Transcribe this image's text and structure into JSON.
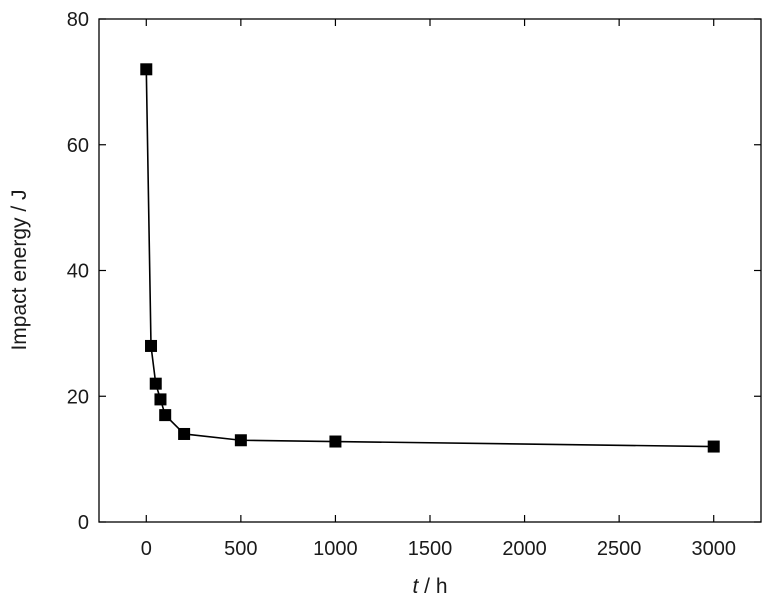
{
  "chart_data": {
    "type": "line",
    "title": "",
    "xlabel_var": "t",
    "xlabel_unit": " / h",
    "ylabel": "Impact energy / J",
    "xlim": [
      -250,
      3250
    ],
    "ylim": [
      0,
      80
    ],
    "xticks": [
      0,
      500,
      1000,
      1500,
      2000,
      2500,
      3000
    ],
    "yticks": [
      0,
      20,
      40,
      60,
      80
    ],
    "xtick_labels": [
      "0",
      "500",
      "1000",
      "1500",
      "2000",
      "2500",
      "3000"
    ],
    "ytick_labels": [
      "0",
      "20",
      "40",
      "60",
      "80"
    ],
    "grid": false,
    "legend": "none",
    "marker": "square",
    "color": "#000000",
    "series": [
      {
        "x": [
          0,
          25,
          50,
          75,
          100,
          200,
          500,
          1000,
          3000
        ],
        "y": [
          72,
          28,
          22,
          19.5,
          17,
          14,
          13,
          12.8,
          12
        ]
      }
    ]
  }
}
